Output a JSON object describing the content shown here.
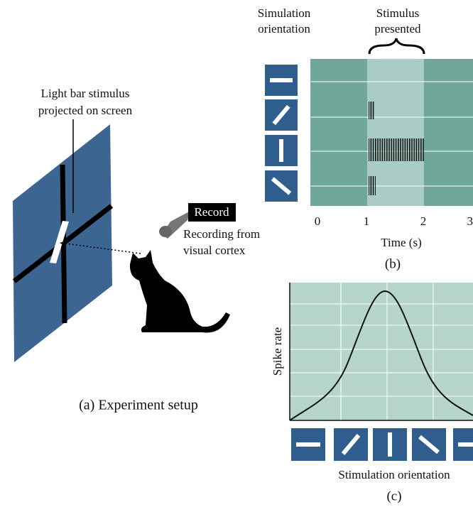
{
  "panel_a": {
    "stimulus_label": [
      "Light bar stimulus",
      "projected on screen"
    ],
    "record_label": "Record",
    "recording_label": [
      "Recording from",
      "visual cortex"
    ],
    "caption": "(a) Experiment setup"
  },
  "panel_b": {
    "orientation_header": [
      "Simulation",
      "orientation"
    ],
    "stimulus_header": [
      "Stimulus",
      "presented"
    ],
    "x_ticks": [
      "0",
      "1",
      "2",
      "3"
    ],
    "x_label": "Time (s)",
    "caption": "(b)"
  },
  "panel_c": {
    "y_label": "Spike rate",
    "x_label": "Stimulation orientation",
    "caption": "(c)"
  }
}
